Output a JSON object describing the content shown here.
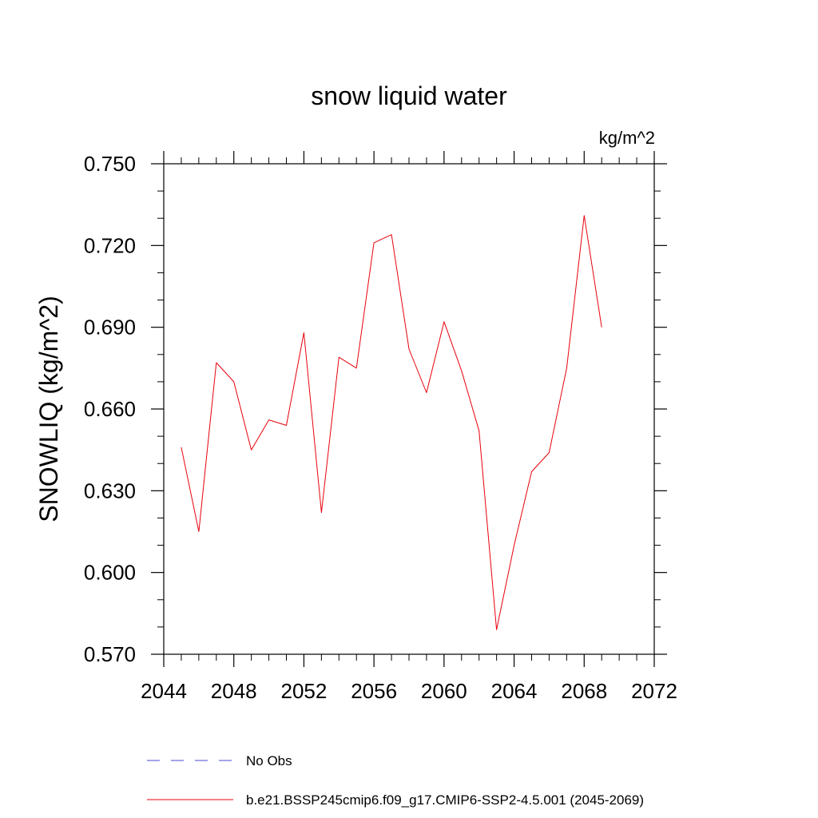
{
  "chart_data": {
    "type": "line",
    "title": "snow liquid water",
    "units_label": "kg/m^2",
    "ylabel": "SNOWLIQ  (kg/m^2)",
    "xlabel": "",
    "xlim": [
      2044,
      2072
    ],
    "ylim": [
      0.57,
      0.75
    ],
    "x_ticks": [
      2044,
      2048,
      2052,
      2056,
      2060,
      2064,
      2068,
      2072
    ],
    "x_tick_labels": [
      "2044",
      "2048",
      "2052",
      "2056",
      "2060",
      "2064",
      "2068",
      "2072"
    ],
    "y_ticks": [
      0.57,
      0.6,
      0.63,
      0.66,
      0.69,
      0.72,
      0.75
    ],
    "y_tick_labels": [
      "0.570",
      "0.600",
      "0.630",
      "0.660",
      "0.690",
      "0.720",
      "0.750"
    ],
    "grid": false,
    "legend_position": "bottom",
    "series": [
      {
        "name": "b.e21.BSSP245cmip6.f09_g17.CMIP6-SSP2-4.5.001 (2045-2069)",
        "color": "#e8000b",
        "dash": "solid",
        "x": [
          2045,
          2046,
          2047,
          2048,
          2049,
          2050,
          2051,
          2052,
          2053,
          2054,
          2055,
          2056,
          2057,
          2058,
          2059,
          2060,
          2061,
          2062,
          2063,
          2064,
          2065,
          2066,
          2067,
          2068,
          2069
        ],
        "values": [
          0.646,
          0.615,
          0.677,
          0.67,
          0.645,
          0.656,
          0.654,
          0.688,
          0.622,
          0.679,
          0.675,
          0.721,
          0.724,
          0.682,
          0.666,
          0.692,
          0.674,
          0.652,
          0.579,
          0.61,
          0.637,
          0.644,
          0.675,
          0.731,
          0.69
        ]
      }
    ],
    "legend": [
      {
        "label": "No Obs",
        "color": "#4a4ad0",
        "dash": "dashed"
      },
      {
        "label": "b.e21.BSSP245cmip6.f09_g17.CMIP6-SSP2-4.5.001 (2045-2069)",
        "color": "#e8000b",
        "dash": "solid"
      }
    ]
  }
}
